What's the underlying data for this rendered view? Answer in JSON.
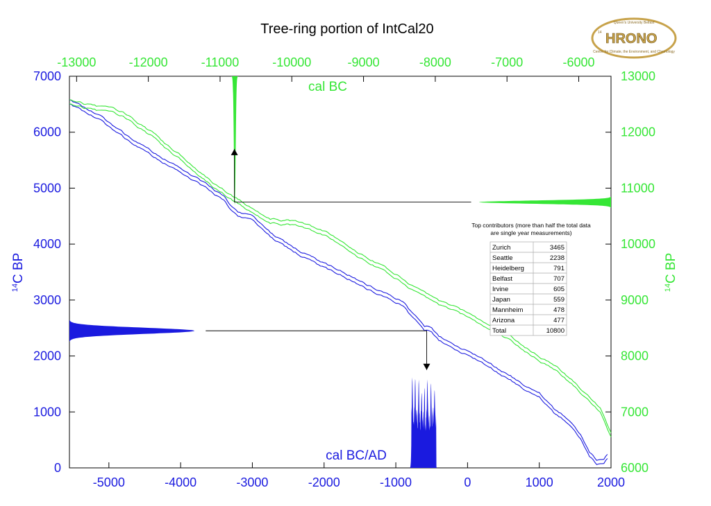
{
  "chart_data": {
    "type": "line",
    "title": "Tree-ring portion of IntCal20",
    "x_axis": {
      "label": "cal BC/AD",
      "range": [
        -5550,
        2000
      ],
      "ticks": [
        -5000,
        -4000,
        -3000,
        -2000,
        -1000,
        0,
        1000,
        2000
      ],
      "tick_labels": [
        "-5000",
        "-4000",
        "-3000",
        "-2000",
        "-1000",
        "0",
        "1000",
        "2000"
      ]
    },
    "x2_axis": {
      "label": "cal BC",
      "range": [
        -13100,
        -5550
      ],
      "ticks": [
        -13000,
        -12000,
        -11000,
        -10000,
        -9000,
        -8000,
        -7000,
        -6000
      ],
      "tick_labels": [
        "-13000",
        "-12000",
        "-11000",
        "-10000",
        "-9000",
        "-8000",
        "-7000",
        "-6000"
      ]
    },
    "y_axis": {
      "label_super": "14",
      "label_main": "C BP",
      "range": [
        0,
        7000
      ],
      "ticks": [
        0,
        1000,
        2000,
        3000,
        4000,
        5000,
        6000,
        7000
      ],
      "tick_labels": [
        "0",
        "1000",
        "2000",
        "3000",
        "4000",
        "5000",
        "6000",
        "7000"
      ]
    },
    "y2_axis": {
      "label_super": "14",
      "label_main": "C BP",
      "range": [
        6000,
        13000
      ],
      "ticks": [
        6000,
        7000,
        8000,
        9000,
        10000,
        11000,
        12000,
        13000
      ],
      "tick_labels": [
        "6000",
        "7000",
        "8000",
        "9000",
        "10000",
        "11000",
        "12000",
        "13000"
      ]
    },
    "series": [
      {
        "axes": "bottom-left",
        "color": "#1a1adf",
        "x": [
          -5550,
          -5400,
          -5200,
          -5000,
          -4800,
          -4600,
          -4400,
          -4200,
          -4000,
          -3800,
          -3600,
          -3400,
          -3300,
          -3200,
          -3000,
          -2900,
          -2700,
          -2500,
          -2300,
          -2100,
          -1900,
          -1700,
          -1500,
          -1300,
          -1100,
          -900,
          -800,
          -700,
          -600,
          -500,
          -400,
          -200,
          0,
          200,
          400,
          600,
          800,
          1000,
          1200,
          1400,
          1600,
          1700,
          1800,
          1900,
          1950
        ],
        "y": [
          6550,
          6440,
          6310,
          6140,
          5950,
          5780,
          5620,
          5460,
          5320,
          5170,
          4990,
          4810,
          4650,
          4540,
          4470,
          4340,
          4120,
          3960,
          3810,
          3680,
          3560,
          3450,
          3310,
          3180,
          3060,
          2950,
          2780,
          2660,
          2490,
          2480,
          2330,
          2150,
          2060,
          1940,
          1760,
          1610,
          1430,
          1290,
          1020,
          840,
          500,
          230,
          110,
          130,
          220
        ]
      },
      {
        "axes": "top-right",
        "color": "#35e635",
        "x": [
          -13100,
          -12900,
          -12700,
          -12500,
          -12300,
          -12100,
          -11900,
          -11700,
          -11500,
          -11300,
          -11100,
          -10900,
          -10700,
          -10500,
          -10300,
          -10100,
          -9900,
          -9700,
          -9500,
          -9300,
          -9100,
          -8900,
          -8700,
          -8500,
          -8300,
          -8100,
          -7900,
          -7700,
          -7500,
          -7300,
          -7100,
          -6900,
          -6700,
          -6500,
          -6300,
          -6100,
          -5900,
          -5700,
          -5550
        ],
        "y": [
          12550,
          12470,
          12420,
          12400,
          12280,
          12100,
          11920,
          11680,
          11500,
          11270,
          11050,
          10890,
          10720,
          10560,
          10420,
          10390,
          10360,
          10270,
          10170,
          10030,
          9840,
          9690,
          9540,
          9380,
          9210,
          9080,
          8920,
          8830,
          8710,
          8560,
          8440,
          8270,
          8080,
          7920,
          7750,
          7540,
          7290,
          7020,
          6590
        ]
      }
    ],
    "arrows": {
      "blue": {
        "from_x": -3650,
        "from_y": 2450,
        "corner_x": -570,
        "to_y": 1750
      },
      "green": {
        "from_x": -7500,
        "from_y": 10750,
        "corner_x": -10800,
        "to_y": 11700
      }
    },
    "distributions": {
      "blue_c14": {
        "center": 2450,
        "sd": 55
      },
      "green_c14": {
        "center": 10750,
        "sd": 28
      },
      "blue_calendar": {
        "peaks": [
          [
            -770,
            1620
          ],
          [
            -730,
            1600
          ],
          [
            -680,
            1580
          ],
          [
            -640,
            1350
          ],
          [
            -600,
            1440
          ],
          [
            -560,
            1580
          ],
          [
            -510,
            1520
          ],
          [
            -460,
            1400
          ]
        ],
        "range": [
          -800,
          -420
        ]
      },
      "green_calendar": {
        "center": -10795,
        "sd": 12,
        "height": 13000
      }
    },
    "table": {
      "note_line1": "Top contributors (more than half the total data",
      "note_line2": "are single year measurements)",
      "rows": [
        {
          "name": "Zurich",
          "count": "3465"
        },
        {
          "name": "Seattle",
          "count": "2238"
        },
        {
          "name": "Heidelberg",
          "count": "791"
        },
        {
          "name": "Belfast",
          "count": "707"
        },
        {
          "name": "Irvine",
          "count": "605"
        },
        {
          "name": "Japan",
          "count": "559"
        },
        {
          "name": "Mannheim",
          "count": "478"
        },
        {
          "name": "Arizona",
          "count": "477"
        },
        {
          "name": "Total",
          "count": "10800"
        }
      ]
    }
  },
  "logo": {
    "text": "HRONO",
    "super": "14",
    "top_small": "Queen's University Belfast",
    "bottom_small": "Centre for Climate, the Environment, and Chronology"
  }
}
